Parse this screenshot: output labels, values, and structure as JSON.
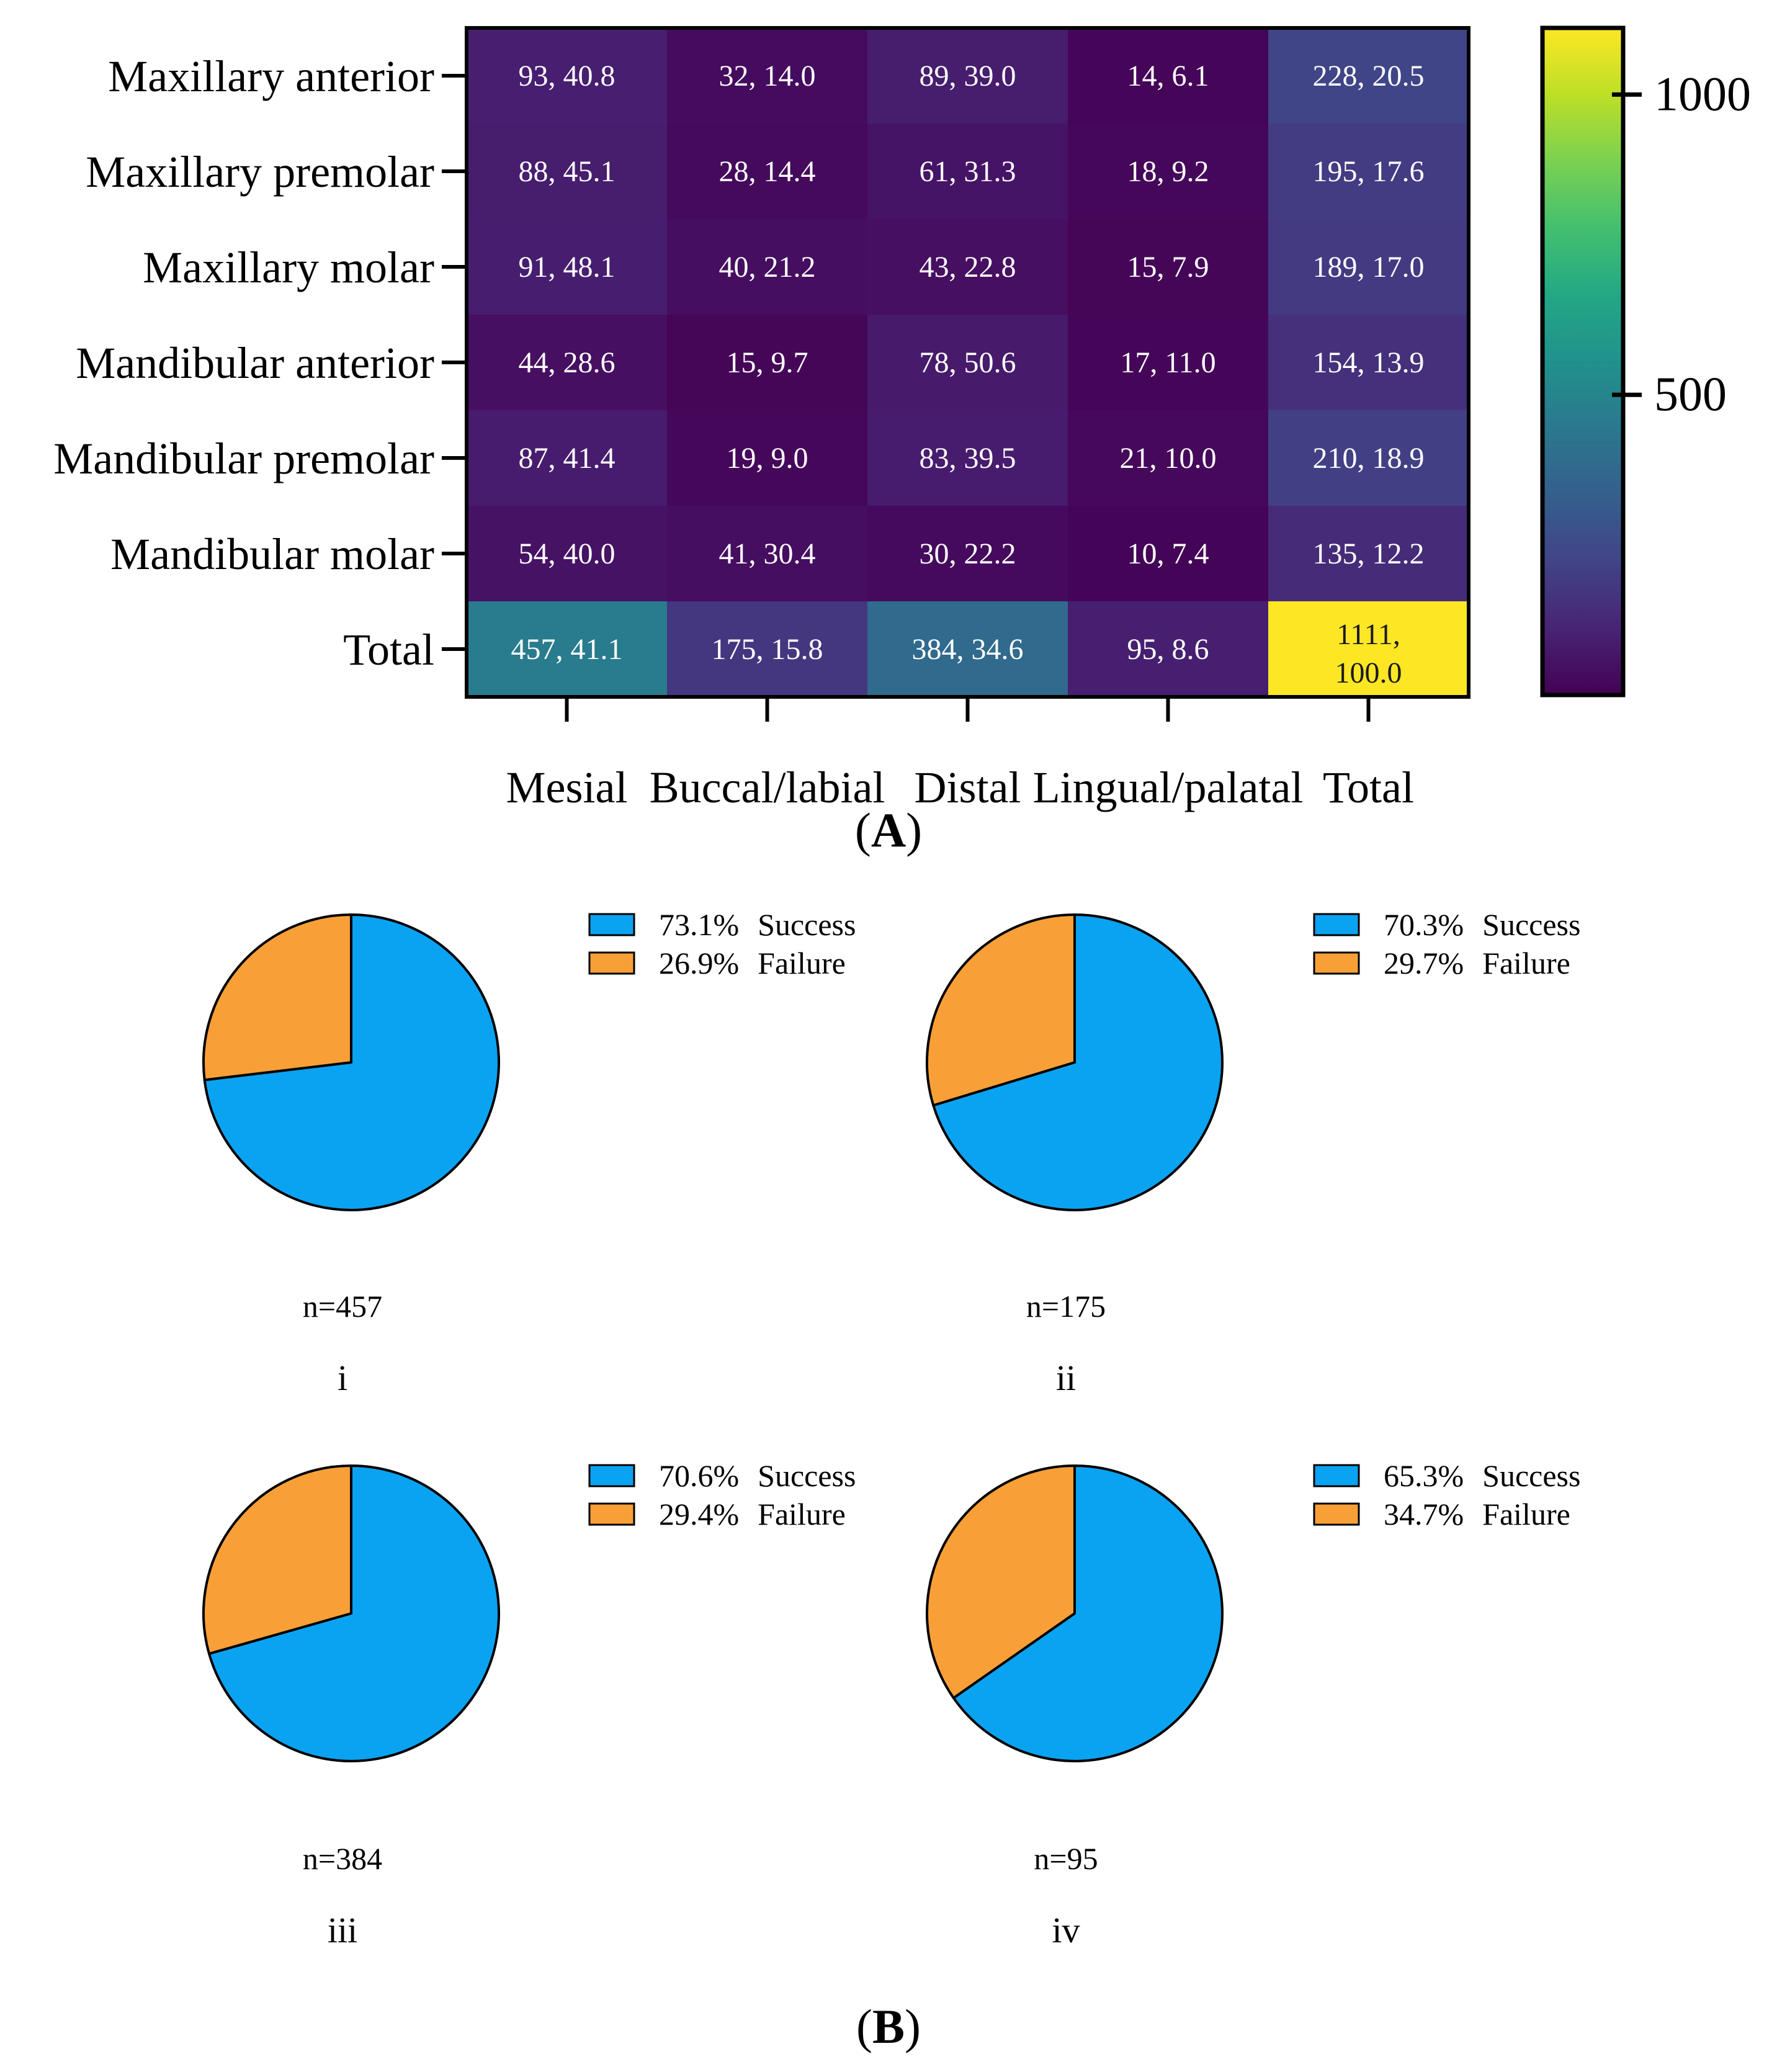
{
  "chart_data": [
    {
      "type": "heatmap",
      "panel_label": "A",
      "rows": [
        "Maxillary anterior",
        "Maxillary premolar",
        "Maxillary molar",
        "Mandibular anterior",
        "Mandibular premolar",
        "Mandibular molar",
        "Total"
      ],
      "columns": [
        "Mesial",
        "Buccal/labial",
        "Distal",
        "Lingual/palatal",
        "Total"
      ],
      "counts": [
        [
          93,
          32,
          89,
          14,
          228
        ],
        [
          88,
          28,
          61,
          18,
          195
        ],
        [
          91,
          40,
          43,
          15,
          189
        ],
        [
          44,
          15,
          78,
          17,
          154
        ],
        [
          87,
          19,
          83,
          21,
          210
        ],
        [
          54,
          41,
          30,
          10,
          135
        ],
        [
          457,
          175,
          384,
          95,
          1111
        ]
      ],
      "labels": [
        [
          "93, 40.8",
          "32, 14.0",
          "89, 39.0",
          "14, 6.1",
          "228, 20.5"
        ],
        [
          "88, 45.1",
          "28, 14.4",
          "61, 31.3",
          "18, 9.2",
          "195, 17.6"
        ],
        [
          "91, 48.1",
          "40, 21.2",
          "43, 22.8",
          "15, 7.9",
          "189, 17.0"
        ],
        [
          "44, 28.6",
          "15, 9.7",
          "78, 50.6",
          "17, 11.0",
          "154, 13.9"
        ],
        [
          "87, 41.4",
          "19, 9.0",
          "83, 39.5",
          "21, 10.0",
          "210, 18.9"
        ],
        [
          "54, 40.0",
          "41, 30.4",
          "30, 22.2",
          "10, 7.4",
          "135, 12.2"
        ],
        [
          "457, 41.1",
          "175, 15.8",
          "384, 34.6",
          "95, 8.6",
          "1111,\n100.0"
        ]
      ],
      "colorbar": {
        "min": 0,
        "max": 1111,
        "ticks": [
          500,
          1000
        ],
        "tick_labels": [
          "500",
          "1000"
        ],
        "colormap": "viridis"
      }
    },
    {
      "type": "pie",
      "panel_label": "B",
      "pies": [
        {
          "id": "i",
          "n_label": "n=457",
          "slices": [
            {
              "name": "Success",
              "value": 73.1,
              "label": "73.1%"
            },
            {
              "name": "Failure",
              "value": 26.9,
              "label": "26.9%"
            }
          ]
        },
        {
          "id": "ii",
          "n_label": "n=175",
          "slices": [
            {
              "name": "Success",
              "value": 70.3,
              "label": "70.3%"
            },
            {
              "name": "Failure",
              "value": 29.7,
              "label": "29.7%"
            }
          ]
        },
        {
          "id": "iii",
          "n_label": "n=384",
          "slices": [
            {
              "name": "Success",
              "value": 70.6,
              "label": "70.6%"
            },
            {
              "name": "Failure",
              "value": 29.4,
              "label": "29.4%"
            }
          ]
        },
        {
          "id": "iv",
          "n_label": "n=95",
          "slices": [
            {
              "name": "Success",
              "value": 65.3,
              "label": "65.3%"
            },
            {
              "name": "Failure",
              "value": 34.7,
              "label": "34.7%"
            }
          ]
        }
      ],
      "colors": {
        "Success": "#0aa3f2",
        "Failure": "#f8a037"
      }
    }
  ],
  "panel_a_label": "(A)",
  "panel_b_label": "(B)"
}
